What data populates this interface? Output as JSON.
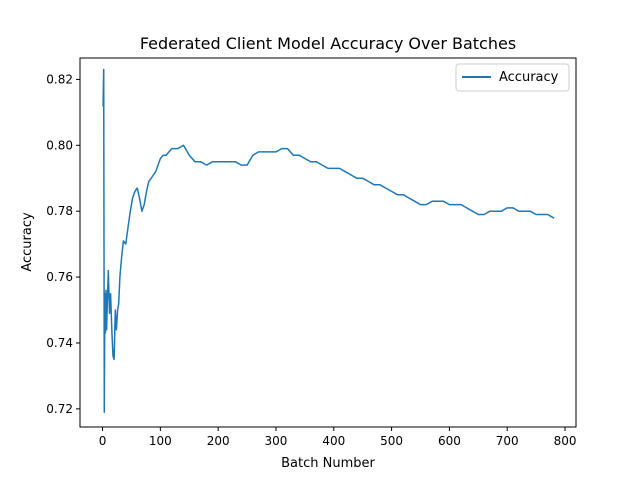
{
  "chart_data": {
    "type": "line",
    "title": "Federated Client Model Accuracy Over Batches",
    "xlabel": "Batch Number",
    "ylabel": "Accuracy",
    "xlim": [
      -39,
      819
    ],
    "ylim": [
      0.7145,
      0.8265
    ],
    "xticks": [
      0,
      100,
      200,
      300,
      400,
      500,
      600,
      700,
      800
    ],
    "yticks": [
      0.72,
      0.74,
      0.76,
      0.78,
      0.8,
      0.82
    ],
    "ytick_labels": [
      "0.72",
      "0.74",
      "0.76",
      "0.78",
      "0.80",
      "0.82"
    ],
    "grid": false,
    "legend": "upper right",
    "series": [
      {
        "name": "Accuracy",
        "color": "#1f77b4",
        "x": [
          1,
          2,
          3,
          4,
          5,
          6,
          7,
          8,
          10,
          12,
          14,
          16,
          18,
          20,
          22,
          24,
          26,
          28,
          30,
          33,
          36,
          40,
          44,
          48,
          52,
          56,
          60,
          64,
          68,
          72,
          76,
          80,
          84,
          88,
          92,
          96,
          100,
          105,
          110,
          115,
          120,
          125,
          130,
          140,
          150,
          160,
          170,
          180,
          190,
          200,
          210,
          220,
          230,
          240,
          250,
          260,
          270,
          280,
          290,
          300,
          310,
          320,
          330,
          340,
          350,
          360,
          370,
          380,
          390,
          400,
          410,
          420,
          430,
          440,
          450,
          460,
          470,
          480,
          490,
          500,
          510,
          520,
          530,
          540,
          550,
          560,
          570,
          580,
          590,
          600,
          610,
          620,
          630,
          640,
          650,
          660,
          670,
          680,
          690,
          700,
          710,
          720,
          730,
          740,
          750,
          760,
          770,
          780
        ],
        "y": [
          0.812,
          0.823,
          0.719,
          0.755,
          0.743,
          0.756,
          0.744,
          0.751,
          0.762,
          0.749,
          0.755,
          0.744,
          0.736,
          0.735,
          0.75,
          0.744,
          0.75,
          0.752,
          0.76,
          0.766,
          0.771,
          0.77,
          0.775,
          0.78,
          0.784,
          0.786,
          0.787,
          0.784,
          0.78,
          0.782,
          0.786,
          0.789,
          0.79,
          0.791,
          0.792,
          0.794,
          0.796,
          0.797,
          0.797,
          0.798,
          0.799,
          0.799,
          0.799,
          0.8,
          0.797,
          0.795,
          0.795,
          0.794,
          0.795,
          0.795,
          0.795,
          0.795,
          0.795,
          0.794,
          0.794,
          0.797,
          0.798,
          0.798,
          0.798,
          0.798,
          0.799,
          0.799,
          0.797,
          0.797,
          0.796,
          0.795,
          0.795,
          0.794,
          0.793,
          0.793,
          0.793,
          0.792,
          0.791,
          0.79,
          0.79,
          0.789,
          0.788,
          0.788,
          0.787,
          0.786,
          0.785,
          0.785,
          0.784,
          0.783,
          0.782,
          0.782,
          0.783,
          0.783,
          0.783,
          0.782,
          0.782,
          0.782,
          0.781,
          0.78,
          0.779,
          0.779,
          0.78,
          0.78,
          0.78,
          0.781,
          0.781,
          0.78,
          0.78,
          0.78,
          0.779,
          0.779,
          0.779,
          0.778
        ]
      }
    ]
  }
}
